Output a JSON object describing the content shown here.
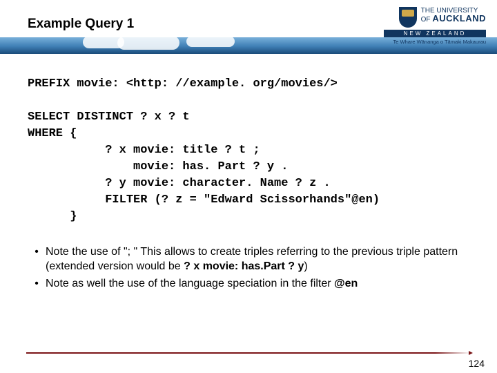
{
  "header": {
    "title": "Example Query 1",
    "university": {
      "line1": "THE UNIVERSITY",
      "line2": "OF",
      "line3": "AUCKLAND",
      "nz": "NEW ZEALAND",
      "maori": "Te Whare Wānanga o Tāmaki Makaurau"
    }
  },
  "code": {
    "l1": "PREFIX movie: <http: //example. org/movies/>",
    "l2": "",
    "l3": "SELECT DISTINCT ? x ? t",
    "l4": "WHERE {",
    "l5": "           ? x movie: title ? t ;",
    "l6": "               movie: has. Part ? y .",
    "l7": "           ? y movie: character. Name ? z .",
    "l8": "           FILTER (? z = \"Edward Scissorhands\"@en)",
    "l9": "      }"
  },
  "notes": {
    "n1": "Note the use of \"; \" This allows to create triples referring to the previous triple pattern (extended version would be ",
    "n1b": "? x movie: has.Part ? y",
    "n1c": ")",
    "n2": "Note as well the use of the language speciation in the filter ",
    "n2b": "@en"
  },
  "page": "124",
  "colors": {
    "footer_line": "#7a1416",
    "logo_navy": "#10355f",
    "sky_top": "#b8d8f0",
    "sky_bottom": "#1a4c7a"
  }
}
